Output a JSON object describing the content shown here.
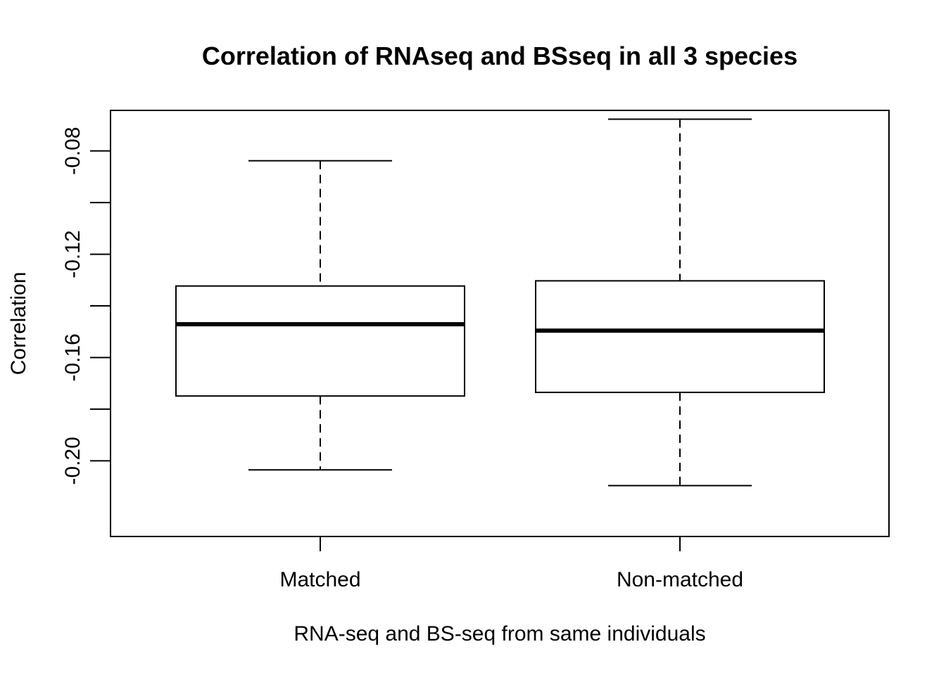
{
  "chart_data": {
    "type": "boxplot",
    "title": "Correlation of RNAseq and BSseq in all 3 species",
    "xlabel": "RNA-seq and BS-seq from same individuals",
    "ylabel": "Correlation",
    "ylim": [
      -0.2293,
      -0.0643
    ],
    "yticks": [
      -0.2,
      -0.18,
      -0.16,
      -0.14,
      -0.12,
      -0.1,
      -0.08
    ],
    "yticklabels": [
      "-0.20",
      "",
      "-0.16",
      "",
      "-0.12",
      "",
      "-0.08"
    ],
    "categories": [
      "Matched",
      "Non-matched"
    ],
    "boxes": [
      {
        "min": -0.2035,
        "q1": -0.1749,
        "median": -0.1471,
        "q3": -0.1323,
        "max": -0.0838
      },
      {
        "min": -0.2096,
        "q1": -0.1735,
        "median": -0.1496,
        "q3": -0.1303,
        "max": -0.0677
      }
    ],
    "grid": false
  }
}
